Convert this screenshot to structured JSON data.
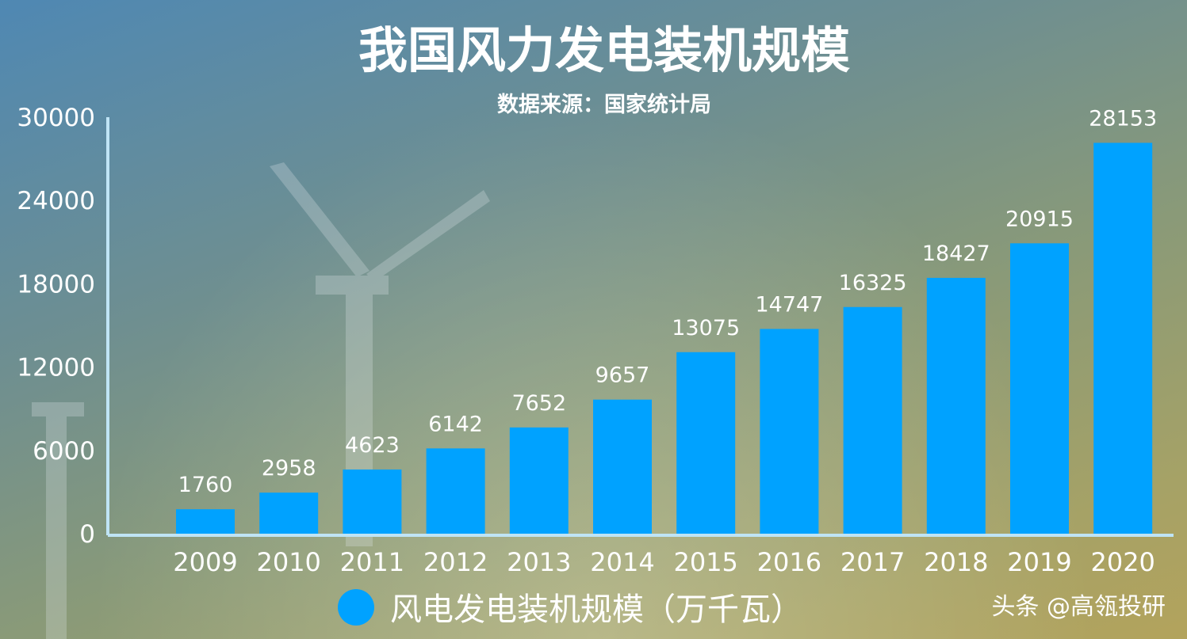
{
  "chart_data": {
    "type": "bar",
    "title": "我国风力发电装机规模",
    "subtitle": "数据来源：国家统计局",
    "categories": [
      "2009",
      "2010",
      "2011",
      "2012",
      "2013",
      "2014",
      "2015",
      "2016",
      "2017",
      "2018",
      "2019",
      "2020"
    ],
    "series": [
      {
        "name": "风电发电装机规模（万千瓦）",
        "values": [
          1760,
          2958,
          4623,
          6142,
          7652,
          9657,
          13075,
          14747,
          16325,
          18427,
          20915,
          28153
        ],
        "color": "#00a2ff"
      }
    ],
    "yticks": [
      "0",
      "6000",
      "12000",
      "18000",
      "24000",
      "30000"
    ],
    "ylim": [
      0,
      30000
    ],
    "grid": false,
    "legend_position": "bottom"
  },
  "watermark": "头条 @高瓴投研"
}
